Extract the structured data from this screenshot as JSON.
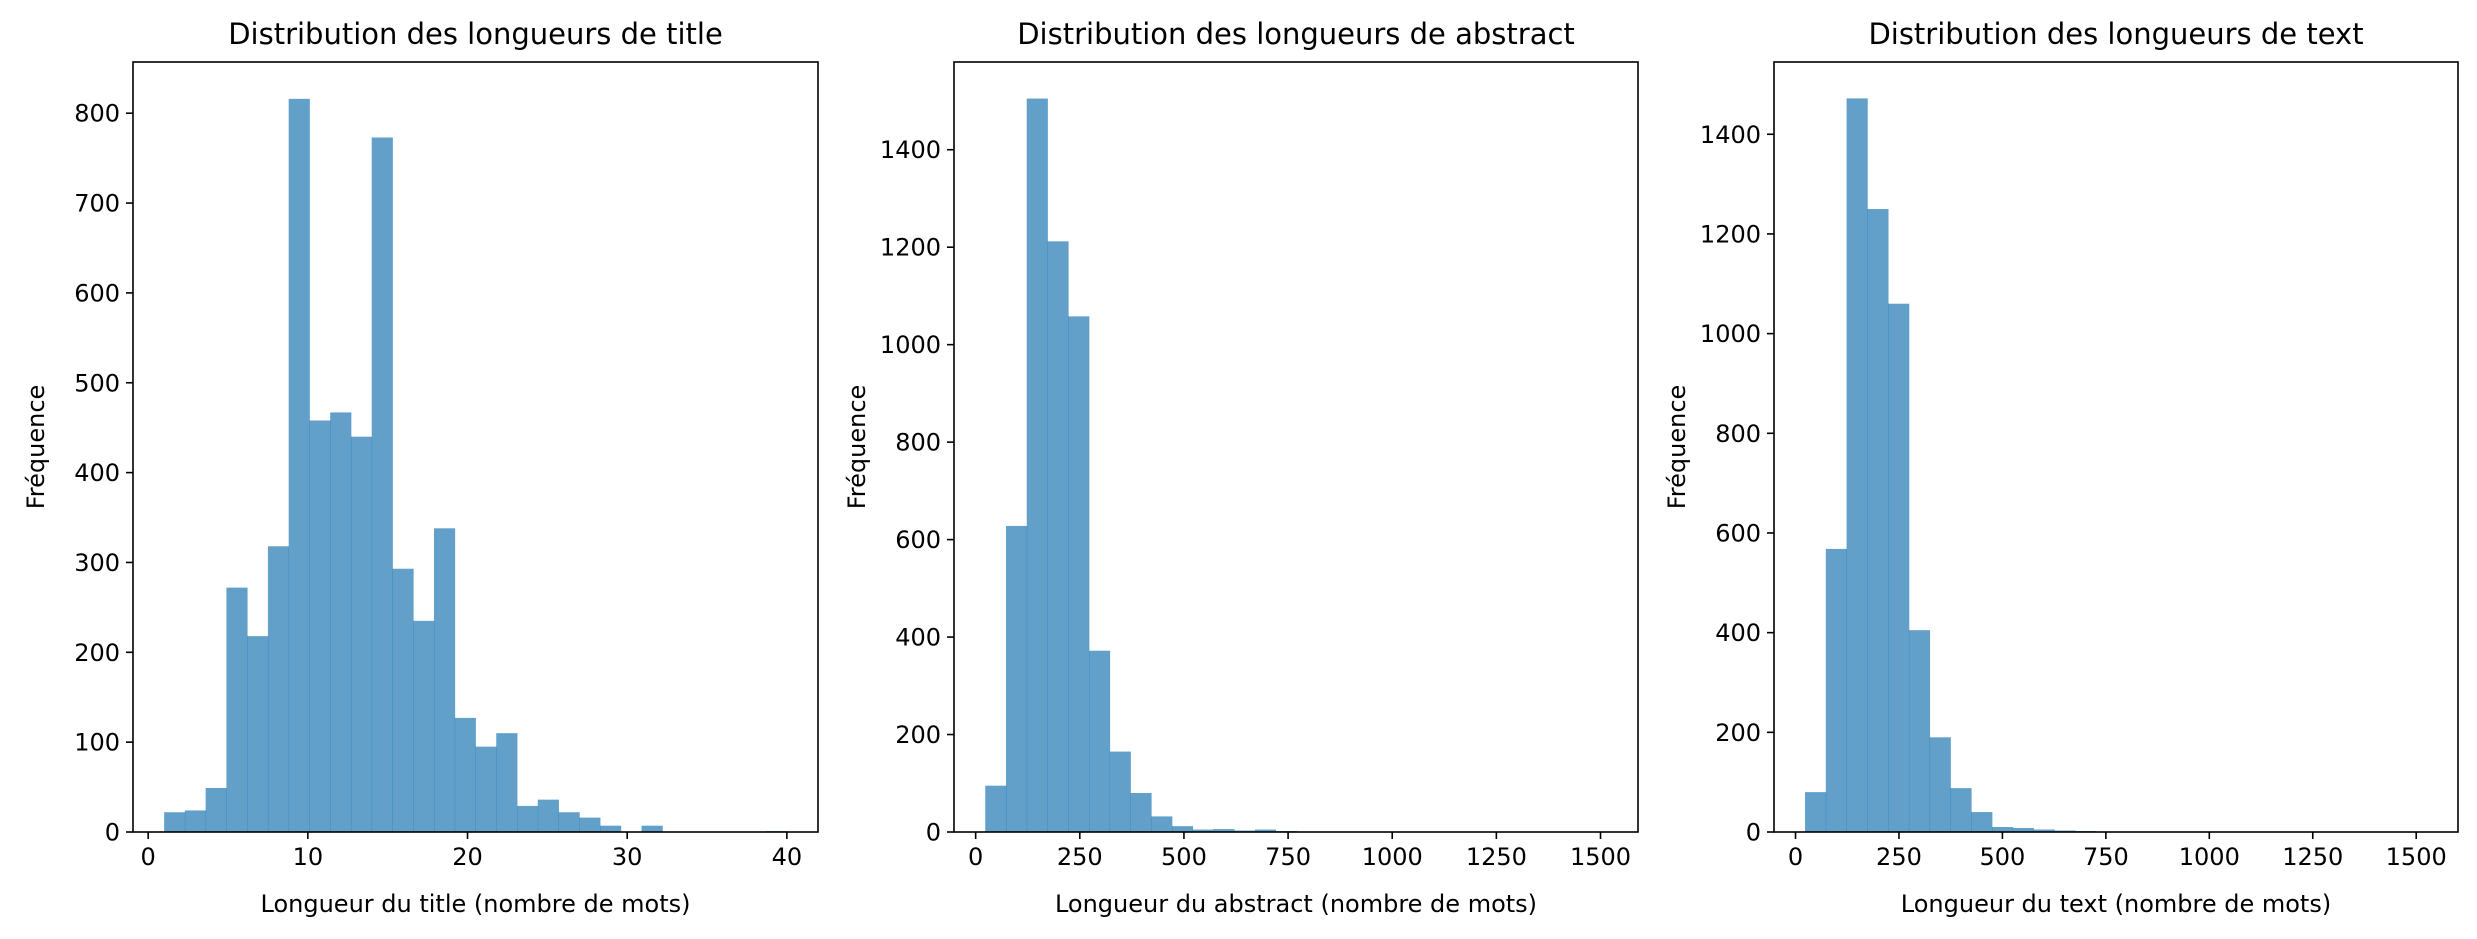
{
  "chart_data": [
    {
      "type": "bar",
      "title": "Distribution des longueurs de title",
      "xlabel": "Longueur du title (nombre de mots)",
      "ylabel": "Fréquence",
      "xlim": [
        -0.95,
        41.95
      ],
      "ylim": [
        0,
        857
      ],
      "xticks": [
        0,
        10,
        20,
        30,
        40
      ],
      "yticks": [
        0,
        100,
        200,
        300,
        400,
        500,
        600,
        700,
        800
      ],
      "bin_start": 1,
      "bin_width": 1.3,
      "values": [
        22,
        24,
        49,
        272,
        218,
        318,
        816,
        458,
        467,
        440,
        773,
        293,
        235,
        338,
        127,
        95,
        110,
        29,
        36,
        22,
        16,
        7,
        0,
        7,
        0,
        0,
        0,
        0,
        0,
        1
      ],
      "bar_color": "#1f77b4",
      "bar_alpha": 0.7,
      "grid": false
    },
    {
      "type": "bar",
      "title": "Distribution des longueurs de abstract",
      "xlabel": "Longueur du abstract (nombre de mots)",
      "ylabel": "Fréquence",
      "xlim": [
        -52,
        1590
      ],
      "ylim": [
        0,
        1580
      ],
      "xticks": [
        0,
        250,
        500,
        750,
        1000,
        1250,
        1500
      ],
      "yticks": [
        0,
        200,
        400,
        600,
        800,
        1000,
        1200,
        1400
      ],
      "bin_start": 23,
      "bin_width": 49.8,
      "values": [
        95,
        628,
        1505,
        1212,
        1058,
        372,
        165,
        80,
        32,
        12,
        5,
        6,
        3,
        5,
        2,
        1,
        1,
        1,
        0,
        1,
        0,
        0,
        0,
        0,
        0,
        0,
        0,
        0,
        0,
        1
      ],
      "bar_color": "#1f77b4",
      "bar_alpha": 0.7,
      "grid": false
    },
    {
      "type": "bar",
      "title": "Distribution des longueurs de text",
      "xlabel": "Longueur du text (nombre de mots)",
      "ylabel": "Fréquence",
      "xlim": [
        -52,
        1601
      ],
      "ylim": [
        0,
        1545
      ],
      "xticks": [
        0,
        250,
        500,
        750,
        1000,
        1250,
        1500
      ],
      "yticks": [
        0,
        200,
        400,
        600,
        800,
        1000,
        1200,
        1400
      ],
      "bin_start": 23,
      "bin_width": 50.2,
      "values": [
        80,
        568,
        1472,
        1250,
        1060,
        405,
        190,
        88,
        40,
        10,
        8,
        5,
        3,
        2,
        1,
        1,
        1,
        1,
        0,
        1,
        0,
        0,
        0,
        0,
        0,
        0,
        0,
        0,
        0,
        1
      ],
      "bar_color": "#1f77b4",
      "bar_alpha": 0.7,
      "grid": false
    }
  ]
}
